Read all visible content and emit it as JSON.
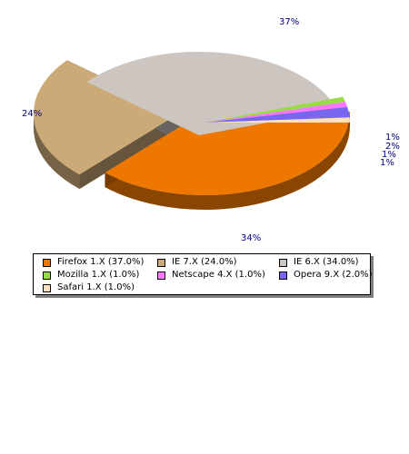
{
  "chart_data": {
    "type": "pie",
    "style": "3d-exploded",
    "slices": [
      {
        "label": "Firefox 1.X",
        "value": 37.0,
        "color": "#ee7700",
        "pct_label": "37%",
        "legend": "Firefox 1.X (37.0%)"
      },
      {
        "label": "IE 7.X",
        "value": 24.0,
        "color": "#ccaa77",
        "pct_label": "24%",
        "legend": "IE 7.X (24.0%)"
      },
      {
        "label": "IE 6.X",
        "value": 34.0,
        "color": "#ccc5c0",
        "pct_label": "34%",
        "legend": "IE 6.X (34.0%)"
      },
      {
        "label": "Mozilla 1.X",
        "value": 1.0,
        "color": "#99dd44",
        "pct_label": "1%",
        "legend": "Mozilla 1.X (1.0%)"
      },
      {
        "label": "Netscape 4.X",
        "value": 1.0,
        "color": "#ff77ff",
        "pct_label": "1%",
        "legend": "Netscape 4.X (1.0%)"
      },
      {
        "label": "Opera 9.X",
        "value": 2.0,
        "color": "#7766ee",
        "pct_label": "2%",
        "legend": "Opera 9.X (2.0%)"
      },
      {
        "label": "Safari 1.X",
        "value": 1.0,
        "color": "#ffe0c0",
        "pct_label": "1%",
        "legend": "Safari 1.X (1.0%)"
      }
    ],
    "legend_position": "bottom"
  }
}
